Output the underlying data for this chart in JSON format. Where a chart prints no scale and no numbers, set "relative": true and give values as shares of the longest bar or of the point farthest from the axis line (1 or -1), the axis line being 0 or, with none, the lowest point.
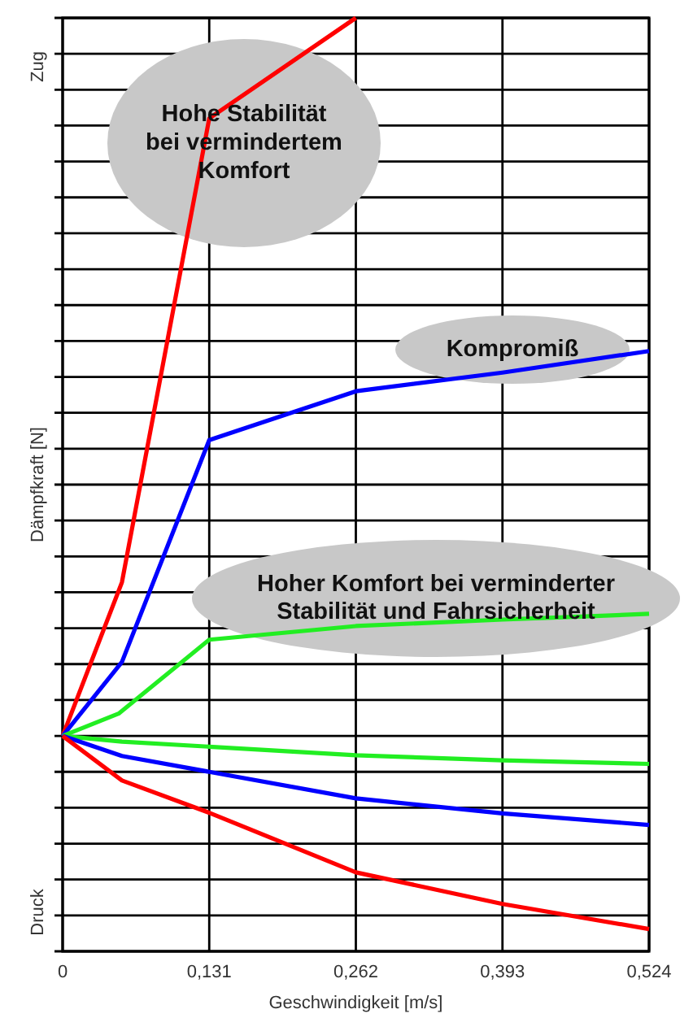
{
  "chart_data": {
    "type": "line",
    "relative": true,
    "xlabel": "Geschwindigkeit [m/s]",
    "ylabel": "Dämpfkraft [N]",
    "xlim": [
      0,
      0.524
    ],
    "xticks": [
      0,
      {
        "value": 0.131,
        "label": "0,131"
      },
      {
        "value": 0.262,
        "label": "0,262"
      },
      {
        "value": 0.393,
        "label": "0,393"
      },
      {
        "value": 0.524,
        "label": "0,524"
      }
    ],
    "grid": true,
    "marker": "none",
    "line_style": "solid",
    "series": [
      {
        "color": "#ff0000",
        "x": [
          0,
          0.053,
          0.131,
          0.262
        ],
        "values": [
          0,
          0.214,
          0.86,
          1
        ]
      },
      {
        "color": "#0000ff",
        "x": [
          0,
          0.053,
          0.131,
          0.262,
          0.393,
          0.524
        ],
        "values": [
          0,
          0.103,
          0.412,
          0.48,
          0.506,
          0.536
        ]
      },
      {
        "color": "#22ee22",
        "x": [
          0,
          0.05,
          0.131,
          0.262,
          0.393,
          0.524
        ],
        "values": [
          0,
          0.031,
          0.134,
          0.153,
          0.162,
          0.17
        ]
      },
      {
        "color": "#22ee22",
        "x": [
          0,
          0.053,
          0.131,
          0.262,
          0.393,
          0.524
        ],
        "values": [
          0,
          -0.008,
          -0.015,
          -0.027,
          -0.034,
          -0.039
        ]
      },
      {
        "color": "#0000ff",
        "x": [
          0,
          0.053,
          0.131,
          0.262,
          0.393,
          0.524
        ],
        "values": [
          0,
          -0.028,
          -0.05,
          -0.087,
          -0.108,
          -0.124
        ]
      },
      {
        "color": "#ff0000",
        "x": [
          0,
          0.053,
          0.131,
          0.262,
          0.393,
          0.524
        ],
        "values": [
          0,
          -0.062,
          -0.107,
          -0.19,
          -0.234,
          -0.269
        ]
      }
    ],
    "annotations": [
      "Zug",
      "Druck",
      "Hohe Stabilität\nbei vermindertem\nKomfort",
      "Kompromiß",
      "Hoher Komfort bei verminderter\nStabilität und Fahrsicherheit"
    ]
  }
}
